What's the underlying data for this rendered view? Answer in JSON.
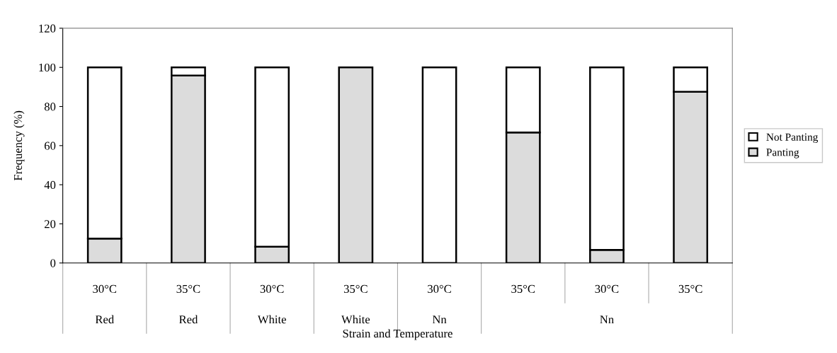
{
  "chart_data": {
    "type": "bar",
    "stacked": true,
    "xlabel": "Strain and Temperature",
    "ylabel": "Frequency (%)",
    "categories": [
      "30°C",
      "35°C",
      "30°C",
      "35°C",
      "30°C",
      "35°C",
      "30°C",
      "35°C"
    ],
    "series": [
      {
        "name": "Panting",
        "color": "#dcdcdc",
        "values": [
          12.5,
          95.8,
          8.3,
          100,
          0,
          66.7,
          6.7,
          87.5
        ]
      },
      {
        "name": "Not Panting",
        "color": "#ffffff",
        "values": [
          87.5,
          4.2,
          91.7,
          0,
          100,
          33.3,
          93.3,
          12.5
        ]
      }
    ],
    "annotations": [
      "Red",
      "Red",
      "White",
      "White",
      "Nn",
      "Nn"
    ],
    "ylim": [
      0,
      120
    ],
    "yticks": [
      0,
      20,
      40,
      60,
      80,
      100,
      120
    ],
    "grid": false,
    "legend": "right"
  }
}
